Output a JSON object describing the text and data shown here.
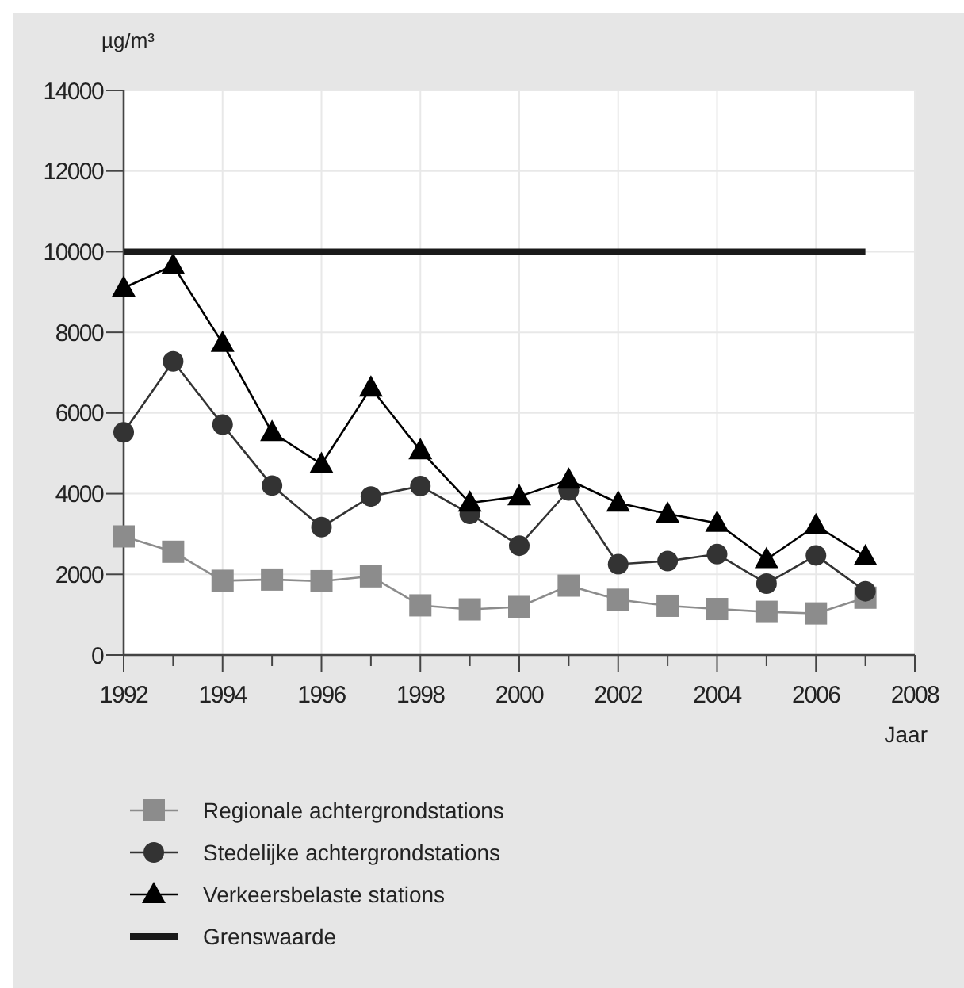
{
  "chart_data": {
    "type": "line",
    "ylabel": "µg/m³",
    "xlabel": "Jaar",
    "x": [
      1992,
      1993,
      1994,
      1995,
      1996,
      1997,
      1998,
      1999,
      2000,
      2001,
      2002,
      2003,
      2004,
      2005,
      2006,
      2007
    ],
    "xlim": [
      1992,
      2008
    ],
    "xticks": [
      1992,
      {
        "value": 1993,
        "label": null
      },
      1994,
      {
        "value": 1995,
        "label": null
      },
      1996,
      {
        "value": 1997,
        "label": null
      },
      1998,
      {
        "value": 1999,
        "label": null
      },
      2000,
      {
        "value": 2001,
        "label": null
      },
      2002,
      {
        "value": 2003,
        "label": null
      },
      2004,
      {
        "value": 2005,
        "label": null
      },
      2006,
      {
        "value": 2007,
        "label": null
      },
      2008
    ],
    "ylim": [
      0,
      14000
    ],
    "yticks": [
      0,
      2000,
      4000,
      6000,
      8000,
      10000,
      12000,
      14000
    ],
    "grid": true,
    "legend": "bottom",
    "line_style": "solid",
    "series": [
      {
        "name": "Regionale achtergrondstations",
        "color": "#8c8c8c",
        "marker": "square",
        "values": [
          2940,
          2560,
          1840,
          1870,
          1830,
          1950,
          1230,
          1130,
          1190,
          1720,
          1370,
          1220,
          1140,
          1070,
          1030,
          1420
        ]
      },
      {
        "name": "Stedelijke achtergrondstations",
        "color": "#333333",
        "marker": "circle",
        "values": [
          5520,
          7280,
          5710,
          4200,
          3170,
          3930,
          4190,
          3500,
          2710,
          4080,
          2250,
          2330,
          2500,
          1770,
          2470,
          1580
        ]
      },
      {
        "name": "Verkeersbelaste stations",
        "color": "#000000",
        "marker": "triangle",
        "values": [
          9100,
          9660,
          7730,
          5520,
          4730,
          6620,
          5070,
          3770,
          3930,
          4340,
          3770,
          3500,
          3270,
          2370,
          3210,
          2440
        ]
      },
      {
        "name": "Grenswaarde",
        "color": "#1a1a1a",
        "marker": "none",
        "values": [
          10000,
          10000,
          10000,
          10000,
          10000,
          10000,
          10000,
          10000,
          10000,
          10000,
          10000,
          10000,
          10000,
          10000,
          10000,
          10000
        ]
      }
    ]
  }
}
